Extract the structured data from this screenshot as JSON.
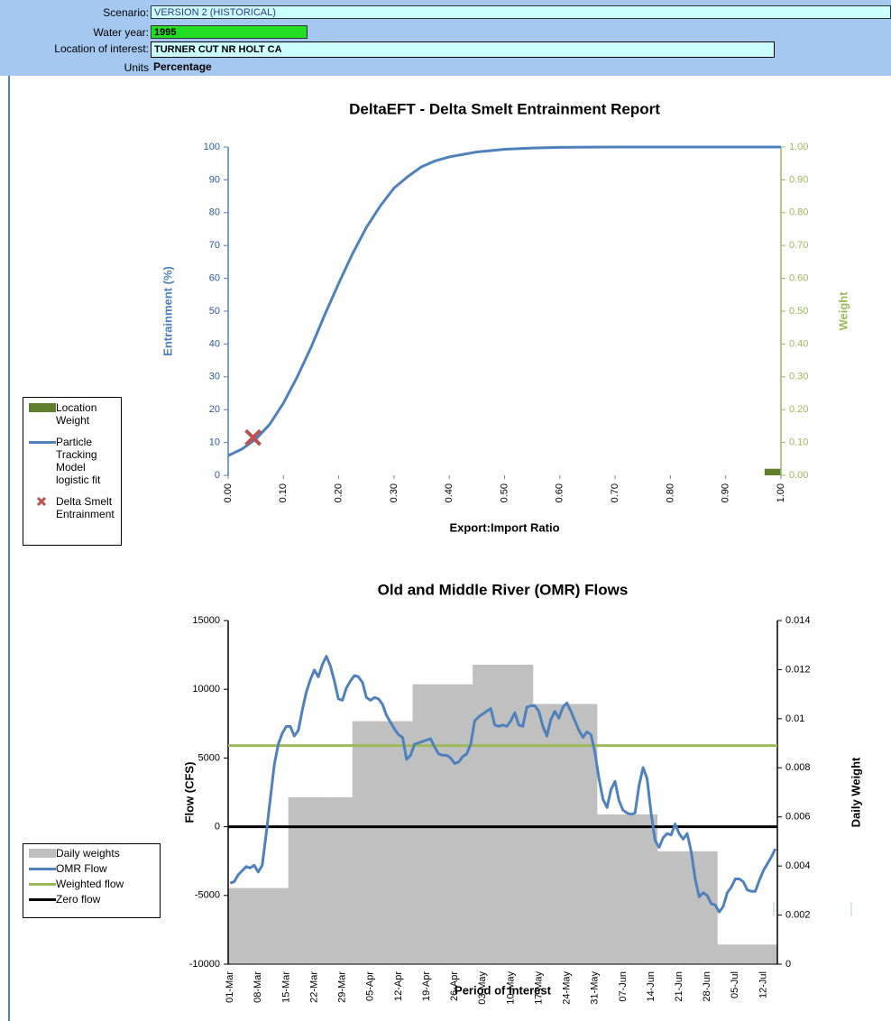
{
  "header": {
    "rows": [
      {
        "label": "Scenario:",
        "value": "VERSION 2 (HISTORICAL)"
      },
      {
        "label": "Water year:",
        "value": "1995"
      },
      {
        "label": "Location of interest:",
        "value": "TURNER CUT NR HOLT CA"
      },
      {
        "label": "Units",
        "value": "Percentage"
      }
    ]
  },
  "chart_data": [
    {
      "type": "line",
      "title": "DeltaEFT - Delta Smelt Entrainment Report",
      "x_label": "Export:Import Ratio",
      "y_label": "Entrainment (%)",
      "y2_label": "Weight",
      "xlim": [
        0,
        1
      ],
      "xticks": [
        {
          "value": 0,
          "label": "0.00"
        },
        {
          "value": 0.1,
          "label": "0.10"
        },
        {
          "value": 0.2,
          "label": "0.20"
        },
        {
          "value": 0.3,
          "label": "0.30"
        },
        {
          "value": 0.4,
          "label": "0.40"
        },
        {
          "value": 0.5,
          "label": "0.50"
        },
        {
          "value": 0.6,
          "label": "0.60"
        },
        {
          "value": 0.7,
          "label": "0.70"
        },
        {
          "value": 0.8,
          "label": "0.80"
        },
        {
          "value": 0.9,
          "label": "0.90"
        },
        {
          "value": 1,
          "label": "1.00"
        }
      ],
      "ylim": [
        0,
        100
      ],
      "yticks": [
        0,
        10,
        20,
        30,
        40,
        50,
        60,
        70,
        80,
        90,
        100
      ],
      "y2lim": [
        0,
        1
      ],
      "y2ticks": [
        {
          "value": 0,
          "label": "0.00"
        },
        {
          "value": 0.1,
          "label": "0.10"
        },
        {
          "value": 0.2,
          "label": "0.20"
        },
        {
          "value": 0.3,
          "label": "0.30"
        },
        {
          "value": 0.4,
          "label": "0.40"
        },
        {
          "value": 0.5,
          "label": "0.50"
        },
        {
          "value": 0.6,
          "label": "0.60"
        },
        {
          "value": 0.7,
          "label": "0.70"
        },
        {
          "value": 0.8,
          "label": "0.80"
        },
        {
          "value": 0.9,
          "label": "0.90"
        },
        {
          "value": 1,
          "label": "1.00"
        }
      ],
      "legend": "left",
      "series": [
        {
          "name": "Location Weight",
          "type": "bar",
          "axis": "y2",
          "color": "#5f7f2c",
          "x": [
            0.985
          ],
          "values": [
            0.02
          ]
        },
        {
          "name": "Particle Tracking Model logistic fit",
          "type": "line",
          "color": "#4f81bd",
          "x": [
            0,
            0.025,
            0.05,
            0.075,
            0.1,
            0.125,
            0.15,
            0.175,
            0.2,
            0.225,
            0.25,
            0.275,
            0.3,
            0.325,
            0.35,
            0.375,
            0.4,
            0.45,
            0.5,
            0.55,
            0.6,
            0.7,
            0.8,
            0.9,
            1
          ],
          "values": [
            6,
            8,
            11,
            15.5,
            22,
            30,
            39,
            49,
            58.5,
            67.5,
            75.5,
            82,
            87.5,
            91,
            94,
            95.8,
            97,
            98.5,
            99.3,
            99.7,
            99.9,
            100,
            100,
            100,
            100
          ]
        },
        {
          "name": "Delta Smelt Entrainment",
          "type": "scatter",
          "color": "#c0504d",
          "x": [
            0.045
          ],
          "values": [
            11.5
          ]
        }
      ]
    },
    {
      "type": "line",
      "title": "Old and Middle River (OMR) Flows",
      "x_label": "Period of Interest",
      "y_label": "Flow (CFS)",
      "y2_label": "Daily Weight",
      "categories": [
        "01-Mar",
        null,
        null,
        null,
        null,
        null,
        null,
        "08-Mar",
        null,
        null,
        null,
        null,
        null,
        null,
        "15-Mar",
        null,
        null,
        null,
        null,
        null,
        null,
        "22-Mar",
        null,
        null,
        null,
        null,
        null,
        null,
        "29-Mar",
        null,
        null,
        null,
        null,
        null,
        null,
        "05-Apr",
        null,
        null,
        null,
        null,
        null,
        null,
        "12-Apr",
        null,
        null,
        null,
        null,
        null,
        null,
        "19-Apr",
        null,
        null,
        null,
        null,
        null,
        null,
        "26-Apr",
        null,
        null,
        null,
        null,
        null,
        null,
        "03-May",
        null,
        null,
        null,
        null,
        null,
        null,
        "10-May",
        null,
        null,
        null,
        null,
        null,
        null,
        "17-May",
        null,
        null,
        null,
        null,
        null,
        null,
        "24-May",
        null,
        null,
        null,
        null,
        null,
        null,
        "31-May",
        null,
        null,
        null,
        null,
        null,
        null,
        "07-Jun",
        null,
        null,
        null,
        null,
        null,
        null,
        "14-Jun",
        null,
        null,
        null,
        null,
        null,
        null,
        "21-Jun",
        null,
        null,
        null,
        null,
        null,
        null,
        "28-Jun",
        null,
        null,
        null,
        null,
        null,
        null,
        "05-Jul",
        null,
        null,
        null,
        null,
        null,
        null,
        "12-Jul",
        null,
        null,
        null
      ],
      "ylim": [
        -10000,
        15000
      ],
      "yticks": [
        -10000,
        -5000,
        0,
        5000,
        10000,
        15000
      ],
      "y2lim": [
        0,
        0.014
      ],
      "y2ticks": [
        0,
        0.002,
        0.004,
        0.006,
        0.008,
        0.01,
        0.012,
        0.014
      ],
      "legend": "left",
      "series": [
        {
          "name": "Daily weights",
          "type": "bar",
          "axis": "y2",
          "color": "#c0c0c0",
          "values": [
            0.0031,
            0.0031,
            0.0031,
            0.0031,
            0.0031,
            0.0031,
            0.0031,
            0.0031,
            0.0031,
            0.0031,
            0.0031,
            0.0031,
            0.0031,
            0.0031,
            0.0031,
            0.0068,
            0.0068,
            0.0068,
            0.0068,
            0.0068,
            0.0068,
            0.0068,
            0.0068,
            0.0068,
            0.0068,
            0.0068,
            0.0068,
            0.0068,
            0.0068,
            0.0068,
            0.0068,
            0.0099,
            0.0099,
            0.0099,
            0.0099,
            0.0099,
            0.0099,
            0.0099,
            0.0099,
            0.0099,
            0.0099,
            0.0099,
            0.0099,
            0.0099,
            0.0099,
            0.0099,
            0.0114,
            0.0114,
            0.0114,
            0.0114,
            0.0114,
            0.0114,
            0.0114,
            0.0114,
            0.0114,
            0.0114,
            0.0114,
            0.0114,
            0.0114,
            0.0114,
            0.0114,
            0.0122,
            0.0122,
            0.0122,
            0.0122,
            0.0122,
            0.0122,
            0.0122,
            0.0122,
            0.0122,
            0.0122,
            0.0122,
            0.0122,
            0.0122,
            0.0122,
            0.0122,
            0.0106,
            0.0106,
            0.0106,
            0.0106,
            0.0106,
            0.0106,
            0.0106,
            0.0106,
            0.0106,
            0.0106,
            0.0106,
            0.0106,
            0.0106,
            0.0106,
            0.0106,
            0.0106,
            0.0061,
            0.0061,
            0.0061,
            0.0061,
            0.0061,
            0.0061,
            0.0061,
            0.0061,
            0.0061,
            0.0061,
            0.0061,
            0.0061,
            0.0061,
            0.0061,
            0.0061,
            0.0046,
            0.0046,
            0.0046,
            0.0046,
            0.0046,
            0.0046,
            0.0046,
            0.0046,
            0.0046,
            0.0046,
            0.0046,
            0.0046,
            0.0046,
            0.0046,
            0.0046,
            0.0008,
            0.0008,
            0.0008,
            0.0008,
            0.0008,
            0.0008,
            0.0008,
            0.0008,
            0.0008,
            0.0008,
            0.0008,
            0.0008,
            0.0008,
            0.0008,
            0.0008
          ]
        },
        {
          "name": "OMR Flow",
          "type": "line",
          "color": "#4f81bd",
          "values": [
            -4100,
            -4000,
            -3500,
            -3200,
            -2900,
            -3000,
            -2800,
            -3300,
            -2800,
            -500,
            2000,
            4500,
            6000,
            6800,
            7300,
            7300,
            6600,
            7000,
            8500,
            9800,
            10700,
            11400,
            10900,
            11800,
            12400,
            11700,
            10600,
            9300,
            9200,
            10100,
            10600,
            11000,
            10900,
            10500,
            9400,
            9200,
            9400,
            9300,
            8900,
            8100,
            7600,
            7100,
            6700,
            6500,
            4900,
            5200,
            6000,
            6100,
            6200,
            6300,
            6400,
            5800,
            5300,
            5200,
            5200,
            5000,
            4600,
            4700,
            5100,
            5300,
            6000,
            7700,
            8000,
            8200,
            8400,
            8600,
            7400,
            7300,
            7400,
            7300,
            7700,
            8300,
            7400,
            7300,
            8700,
            8800,
            8800,
            8400,
            7300,
            6600,
            7800,
            8400,
            7900,
            8700,
            9000,
            8400,
            7700,
            7000,
            6500,
            6900,
            6700,
            5400,
            3500,
            2000,
            1400,
            2700,
            3300,
            1900,
            1200,
            1000,
            900,
            1000,
            3000,
            4300,
            3500,
            1000,
            -1000,
            -1500,
            -800,
            -500,
            -600,
            200,
            -500,
            -900,
            -500,
            -1800,
            -3800,
            -5100,
            -4800,
            -5000,
            -5600,
            -5700,
            -6200,
            -5800,
            -4800,
            -4400,
            -3800,
            -3800,
            -4000,
            -4600,
            -4700,
            -4700,
            -3900,
            -3200,
            -2700,
            -2200,
            -1600
          ]
        }
      ],
      "hlines": [
        {
          "name": "Weighted flow",
          "color": "#9bbb59",
          "value": 5900
        },
        {
          "name": "Zero flow",
          "color": "#000000",
          "value": 0
        }
      ]
    }
  ]
}
